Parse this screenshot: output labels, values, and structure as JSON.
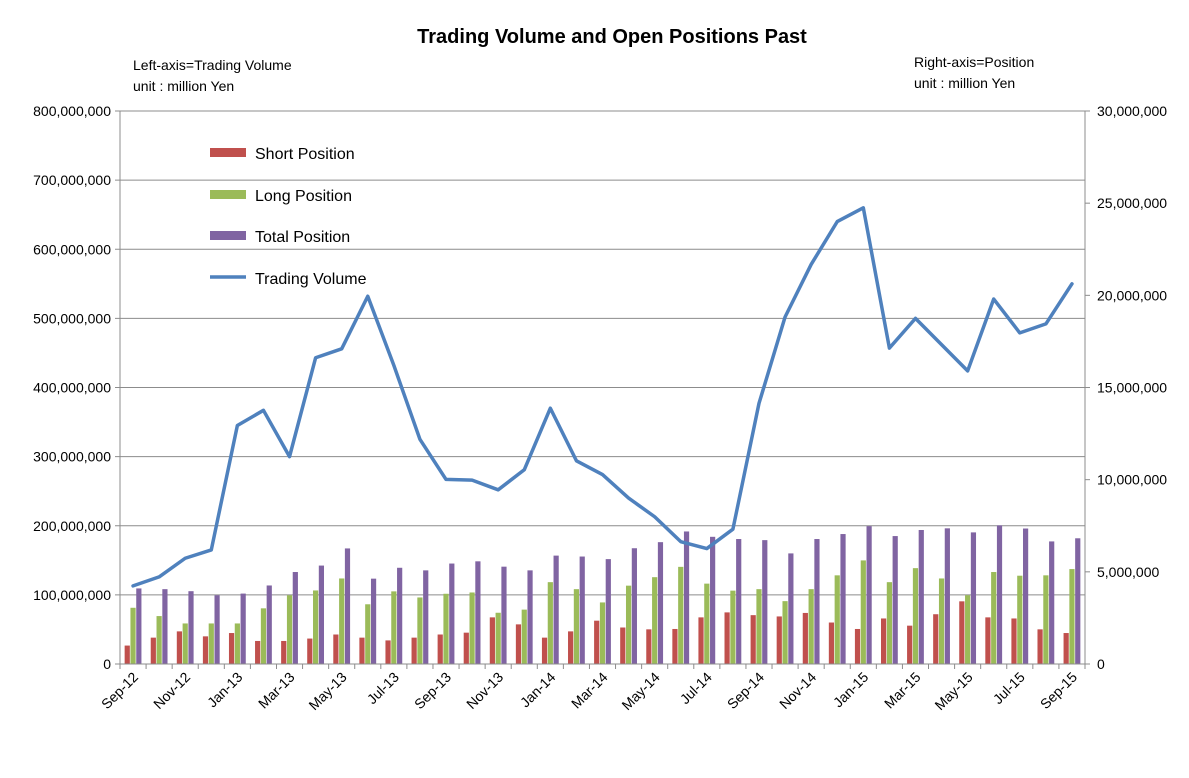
{
  "chart_data": {
    "type": "bar",
    "title": "Trading Volume and Open Positions Past",
    "left_note": [
      "Left-axis=Trading Volume",
      "unit : million Yen"
    ],
    "right_note": [
      "Right-axis=Position",
      "unit : million Yen"
    ],
    "categories": [
      "Sep-12",
      "Oct-12",
      "Nov-12",
      "Dec-12",
      "Jan-13",
      "Feb-13",
      "Mar-13",
      "Apr-13",
      "May-13",
      "Jun-13",
      "Jul-13",
      "Aug-13",
      "Sep-13",
      "Oct-13",
      "Nov-13",
      "Dec-13",
      "Jan-14",
      "Feb-14",
      "Mar-14",
      "Apr-14",
      "May-14",
      "Jun-14",
      "Jul-14",
      "Aug-14",
      "Sep-14",
      "Oct-14",
      "Nov-14",
      "Dec-14",
      "Jan-15",
      "Feb-15",
      "Mar-15",
      "Apr-15",
      "May-15",
      "Jun-15",
      "Jul-15",
      "Aug-15",
      "Sep-15"
    ],
    "x_tick_labels": [
      "Sep-12",
      "Nov-12",
      "Jan-13",
      "Mar-13",
      "May-13",
      "Jul-13",
      "Sep-13",
      "Nov-13",
      "Jan-14",
      "Mar-14",
      "May-14",
      "Jul-14",
      "Sep-14",
      "Nov-14",
      "Jan-15",
      "Mar-15",
      "May-15",
      "Jul-15",
      "Sep-15"
    ],
    "left_axis": {
      "label": "Trading Volume",
      "ylim": [
        0,
        800000000
      ],
      "ticks": [
        "0",
        "100,000,000",
        "200,000,000",
        "300,000,000",
        "400,000,000",
        "500,000,000",
        "600,000,000",
        "700,000,000",
        "800,000,000"
      ]
    },
    "right_axis": {
      "label": "Position",
      "ylim": [
        0,
        30000000
      ],
      "ticks": [
        "0",
        "5,000,000",
        "10,000,000",
        "15,000,000",
        "20,000,000",
        "25,000,000",
        "30,000,000"
      ]
    },
    "grid": true,
    "series": [
      {
        "name": "Short Position",
        "axis": "right",
        "kind": "bar",
        "color": "#C0504D",
        "values": [
          1000000,
          1430000,
          1770000,
          1500000,
          1680000,
          1250000,
          1250000,
          1380000,
          1600000,
          1430000,
          1280000,
          1430000,
          1600000,
          1700000,
          2530000,
          2150000,
          1430000,
          1770000,
          2350000,
          1980000,
          1880000,
          1900000,
          2530000,
          2800000,
          2650000,
          2580000,
          2770000,
          2250000,
          1900000,
          2470000,
          2080000,
          2700000,
          3400000,
          2530000,
          2470000,
          1880000,
          1680000
        ]
      },
      {
        "name": "Long Position",
        "axis": "right",
        "kind": "bar",
        "color": "#9BBB59",
        "values": [
          3050000,
          2600000,
          2200000,
          2200000,
          2200000,
          3020000,
          3730000,
          3990000,
          4640000,
          3240000,
          3940000,
          3610000,
          3810000,
          3880000,
          2780000,
          2950000,
          4440000,
          4060000,
          3340000,
          4250000,
          4710000,
          5270000,
          4360000,
          3980000,
          4060000,
          3410000,
          4060000,
          4810000,
          5620000,
          4440000,
          5200000,
          4640000,
          3730000,
          4990000,
          4790000,
          4810000,
          5150000
        ]
      },
      {
        "name": "Total Position",
        "axis": "right",
        "kind": "bar",
        "color": "#8064A2",
        "values": [
          4100000,
          4060000,
          3950000,
          3730000,
          3820000,
          4260000,
          4990000,
          5340000,
          6270000,
          4630000,
          5220000,
          5080000,
          5450000,
          5570000,
          5280000,
          5080000,
          5880000,
          5830000,
          5690000,
          6280000,
          6610000,
          7190000,
          6900000,
          6780000,
          6720000,
          6000000,
          6780000,
          7050000,
          7480000,
          6940000,
          7270000,
          7360000,
          7140000,
          7520000,
          7350000,
          6650000,
          6820000
        ]
      },
      {
        "name": "Trading Volume",
        "axis": "left",
        "kind": "line",
        "color": "#4F81BD",
        "values": [
          113000000,
          126000000,
          153000000,
          165000000,
          345000000,
          367000000,
          300000000,
          443000000,
          456000000,
          532000000,
          432000000,
          325000000,
          267000000,
          266000000,
          252000000,
          281000000,
          370000000,
          294000000,
          274000000,
          240000000,
          213000000,
          177000000,
          167000000,
          195000000,
          377000000,
          502000000,
          578000000,
          640000000,
          660000000,
          457000000,
          500000000,
          462000000,
          424000000,
          528000000,
          479000000,
          492000000,
          550000000
        ]
      }
    ],
    "legend_position": "upper-left inside plot"
  }
}
